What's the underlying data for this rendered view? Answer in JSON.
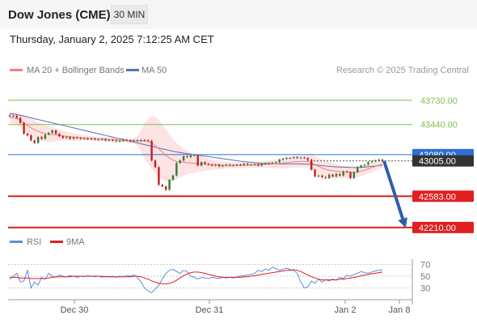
{
  "header": {
    "title": "Dow Jones (CME)",
    "timeframe": "30 MIN"
  },
  "datetime": "Thursday, January 2, 2025 7:12:25 AM CET",
  "legend": {
    "ma20_label": "MA 20 + Bollinger Bands",
    "ma50_label": "MA 50",
    "credit": "Research © 2025 Trading Central"
  },
  "rsi_legend": {
    "rsi_label": "RSI",
    "ma9_label": "9MA"
  },
  "colors": {
    "resistance": "#7cc04a",
    "support": "#e02020",
    "pivot": "#2f6fd6",
    "current": "#333333",
    "candle_up": "#2f7d2f",
    "candle_down": "#c02020",
    "ma20": "#f08080",
    "ma50": "#5572b8",
    "band_fill": "#fde0e0",
    "arrow": "#2f5ea8",
    "rsi": "#5b8fd9",
    "rsi_ma": "#e02020"
  },
  "chart_data": {
    "type": "candlestick",
    "ylim": [
      42160,
      43960
    ],
    "levels": [
      {
        "name": "resistance_2",
        "value": 43730.0,
        "label": "43730.00",
        "color": "#7cc04a"
      },
      {
        "name": "resistance_1",
        "value": 43440.0,
        "label": "43440.00",
        "color": "#7cc04a"
      },
      {
        "name": "pivot",
        "value": 43080.0,
        "label": "43080.00",
        "color": "#2f6fd6"
      },
      {
        "name": "current",
        "value": 43005.0,
        "label": "43005.00",
        "color": "#333333"
      },
      {
        "name": "support_1",
        "value": 42583.0,
        "label": "42583.00",
        "color": "#e02020"
      },
      {
        "name": "support_2",
        "value": 42210.0,
        "label": "42210.00",
        "color": "#e02020"
      }
    ],
    "x_ticks": [
      "Dec 30",
      "Dec 31",
      "Jan 2",
      "Jan 8"
    ],
    "close": [
      43540,
      43545,
      43520,
      43460,
      43330,
      43310,
      43250,
      43220,
      43290,
      43270,
      43320,
      43340,
      43370,
      43330,
      43300,
      43280,
      43290,
      43270,
      43285,
      43280,
      43270,
      43275,
      43265,
      43270,
      43260,
      43260,
      43265,
      43250,
      43255,
      43250,
      43240,
      43245,
      43255,
      43250,
      43240,
      43250,
      43245,
      43255,
      43250,
      43245,
      43010,
      42930,
      42720,
      42700,
      42660,
      42780,
      42830,
      42980,
      43010,
      43060,
      43050,
      43070,
      43070,
      42950,
      42990,
      42970,
      42960,
      42950,
      42960,
      42940,
      42950,
      42960,
      42950,
      42955,
      42960,
      42955,
      42970,
      42960,
      42960,
      42965,
      42950,
      42970,
      42975,
      42980,
      42985,
      42990,
      43020,
      43030,
      43040,
      43040,
      43050,
      43040,
      43045,
      43040,
      43020,
      42900,
      42820,
      42830,
      42810,
      42800,
      42840,
      42820,
      42850,
      42830,
      42880,
      42870,
      42800,
      42870,
      42930,
      42950,
      42960,
      42990,
      43000,
      43010,
      43020,
      43005
    ],
    "ma20": [
      43530,
      43520,
      43510,
      43490,
      43460,
      43430,
      43400,
      43380,
      43360,
      43345,
      43335,
      43325,
      43320,
      43315,
      43310,
      43305,
      43300,
      43295,
      43290,
      43285,
      43280,
      43280,
      43277,
      43275,
      43272,
      43270,
      43267,
      43265,
      43262,
      43260,
      43257,
      43255,
      43253,
      43250,
      43248,
      43247,
      43246,
      43245,
      43244,
      43240,
      43220,
      43190,
      43150,
      43110,
      43070,
      43040,
      43015,
      43000,
      42995,
      42990,
      42985,
      42980,
      42975,
      42970,
      42968,
      42965,
      42963,
      42960,
      42958,
      42956,
      42955,
      42954,
      42953,
      42952,
      42952,
      42953,
      42954,
      42955,
      42957,
      42958,
      42960,
      42962,
      42964,
      42966,
      42968,
      42970,
      42975,
      42980,
      42985,
      42990,
      42995,
      42997,
      42999,
      43000,
      42998,
      42985,
      42960,
      42940,
      42920,
      42905,
      42895,
      42888,
      42882,
      42878,
      42875,
      42873,
      42870,
      42870,
      42875,
      42885,
      42895,
      42910,
      42925,
      42940,
      42955,
      42965
    ],
    "ma50": [
      43570,
      43565,
      43558,
      43550,
      43540,
      43530,
      43520,
      43510,
      43500,
      43490,
      43480,
      43470,
      43460,
      43450,
      43440,
      43430,
      43420,
      43410,
      43400,
      43390,
      43380,
      43370,
      43360,
      43350,
      43340,
      43330,
      43320,
      43310,
      43300,
      43290,
      43280,
      43270,
      43260,
      43250,
      43240,
      43230,
      43220,
      43210,
      43200,
      43190,
      43180,
      43170,
      43160,
      43150,
      43140,
      43130,
      43120,
      43112,
      43105,
      43098,
      43092,
      43086,
      43080,
      43074,
      43068,
      43062,
      43056,
      43050,
      43044,
      43038,
      43032,
      43026,
      43020,
      43014,
      43008,
      43002,
      42996,
      42992,
      42988,
      42984,
      42980,
      42977,
      42975,
      42973,
      42972,
      42971,
      42970,
      42970,
      42970,
      42970,
      42970,
      42970,
      42969,
      42968,
      42966,
      42963,
      42958,
      42953,
      42948,
      42944,
      42940,
      42937,
      42934,
      42932,
      42930,
      42928,
      42926,
      42925,
      42926,
      42928,
      42931,
      42935,
      42940,
      42945,
      42950,
      42955
    ],
    "bb_width": [
      70,
      70,
      75,
      85,
      95,
      105,
      110,
      115,
      110,
      105,
      100,
      95,
      85,
      75,
      65,
      60,
      55,
      50,
      45,
      40,
      35,
      30,
      30,
      25,
      25,
      25,
      25,
      25,
      25,
      25,
      25,
      25,
      25,
      25,
      25,
      30,
      60,
      130,
      210,
      270,
      320,
      340,
      340,
      330,
      310,
      280,
      250,
      220,
      190,
      160,
      140,
      120,
      110,
      100,
      90,
      80,
      70,
      60,
      55,
      50,
      45,
      40,
      38,
      35,
      35,
      35,
      35,
      35,
      35,
      35,
      35,
      35,
      40,
      45,
      50,
      55,
      60,
      65,
      70,
      70,
      70,
      70,
      70,
      70,
      75,
      90,
      100,
      105,
      105,
      100,
      95,
      90,
      85,
      80,
      75,
      70,
      70,
      68,
      65,
      62,
      60,
      58,
      55,
      50,
      48,
      45
    ],
    "rsi": {
      "ylim": [
        10,
        90
      ],
      "ticks": [
        70,
        50,
        30
      ],
      "rsi": [
        45,
        50,
        55,
        40,
        42,
        60,
        30,
        40,
        35,
        48,
        45,
        55,
        50,
        48,
        52,
        50,
        49,
        51,
        50,
        48,
        50,
        49,
        51,
        50,
        49,
        50,
        48,
        50,
        49,
        50,
        48,
        50,
        49,
        51,
        50,
        52,
        48,
        40,
        30,
        25,
        22,
        28,
        35,
        45,
        55,
        60,
        62,
        58,
        55,
        60,
        58,
        50,
        48,
        45,
        48,
        47,
        46,
        48,
        47,
        46,
        48,
        47,
        48,
        47,
        49,
        50,
        51,
        52,
        53,
        55,
        60,
        58,
        62,
        60,
        65,
        63,
        60,
        62,
        64,
        61,
        60,
        55,
        40,
        30,
        32,
        42,
        38,
        45,
        40,
        44,
        42,
        45,
        43,
        48,
        46,
        52,
        50,
        53,
        55,
        58,
        56,
        55,
        57,
        59,
        60,
        61
      ],
      "ma9": [
        48,
        48,
        48,
        47,
        47,
        47,
        46,
        46,
        46,
        46,
        46,
        47,
        48,
        49,
        49,
        49,
        49,
        49,
        50,
        50,
        50,
        50,
        50,
        50,
        50,
        50,
        50,
        49,
        49,
        49,
        49,
        49,
        49,
        49,
        49,
        50,
        50,
        49,
        47,
        45,
        42,
        40,
        38,
        37,
        37,
        38,
        40,
        43,
        47,
        51,
        54,
        56,
        57,
        57,
        56,
        55,
        53,
        52,
        50,
        49,
        48,
        48,
        48,
        48,
        48,
        48,
        49,
        49,
        50,
        51,
        52,
        53,
        54,
        55,
        56,
        57,
        58,
        59,
        60,
        60,
        61,
        60,
        58,
        55,
        52,
        49,
        47,
        45,
        44,
        44,
        44,
        44,
        44,
        45,
        45,
        46,
        47,
        48,
        49,
        51,
        52,
        53,
        54,
        55,
        56,
        57
      ]
    }
  }
}
